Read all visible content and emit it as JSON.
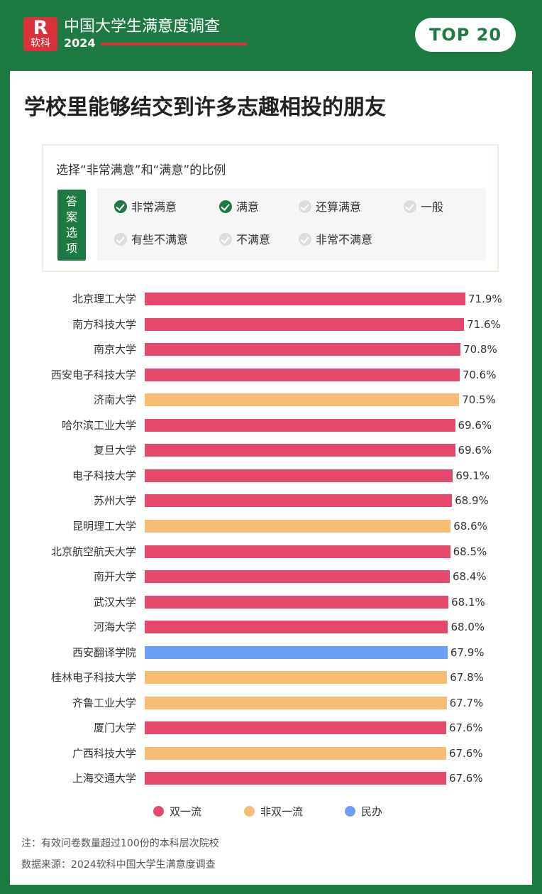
{
  "header": {
    "logo_main": "R",
    "logo_sub": "软科",
    "brand": "中国大学生满意度调查",
    "year": "2024",
    "top_button": "TOP 20"
  },
  "title": "学校里能够结交到许多志趣相投的朋友",
  "question": {
    "text": "选择“非常满意”和“满意”的比例",
    "tag": [
      "答",
      "案",
      "选",
      "项"
    ],
    "options": [
      {
        "label": "非常满意",
        "checked": true
      },
      {
        "label": "满意",
        "checked": true
      },
      {
        "label": "还算满意",
        "checked": false
      },
      {
        "label": "一般",
        "checked": false
      },
      {
        "label": "有些不满意",
        "checked": false
      },
      {
        "label": "不满意",
        "checked": false
      },
      {
        "label": "非常不满意",
        "checked": false
      }
    ]
  },
  "colors": {
    "双一流": "#e4486b",
    "非双一流": "#f8bc72",
    "民办": "#6d9ef5"
  },
  "chart_data": {
    "type": "bar",
    "orientation": "horizontal",
    "categories": [
      "北京理工大学",
      "南方科技大学",
      "南京大学",
      "西安电子科技大学",
      "济南大学",
      "哈尔滨工业大学",
      "复旦大学",
      "电子科技大学",
      "苏州大学",
      "昆明理工大学",
      "北京航空航天大学",
      "南开大学",
      "武汉大学",
      "河海大学",
      "西安翻译学院",
      "桂林电子科技大学",
      "齐鲁工业大学",
      "厦门大学",
      "广西科技大学",
      "上海交通大学"
    ],
    "values": [
      71.9,
      71.6,
      70.8,
      70.6,
      70.5,
      69.6,
      69.6,
      69.1,
      68.9,
      68.6,
      68.5,
      68.4,
      68.1,
      68.0,
      67.9,
      67.8,
      67.7,
      67.6,
      67.6,
      67.6
    ],
    "value_labels": [
      "71.9%",
      "71.6%",
      "70.8%",
      "70.6%",
      "70.5%",
      "69.6%",
      "69.6%",
      "69.1%",
      "68.9%",
      "68.6%",
      "68.5%",
      "68.4%",
      "68.1%",
      "68.0%",
      "67.9%",
      "67.8%",
      "67.7%",
      "67.6%",
      "67.6%",
      "67.6%"
    ],
    "groups": [
      "双一流",
      "双一流",
      "双一流",
      "双一流",
      "非双一流",
      "双一流",
      "双一流",
      "双一流",
      "双一流",
      "非双一流",
      "双一流",
      "双一流",
      "双一流",
      "双一流",
      "民办",
      "非双一流",
      "非双一流",
      "双一流",
      "非双一流",
      "双一流"
    ],
    "legend": [
      "双一流",
      "非双一流",
      "民办"
    ],
    "legend_position": "bottom",
    "unit": "%"
  },
  "notes": [
    "注：有效问卷数量超过100份的本科层次院校",
    "数据来源：2024软科中国大学生满意度调查"
  ]
}
